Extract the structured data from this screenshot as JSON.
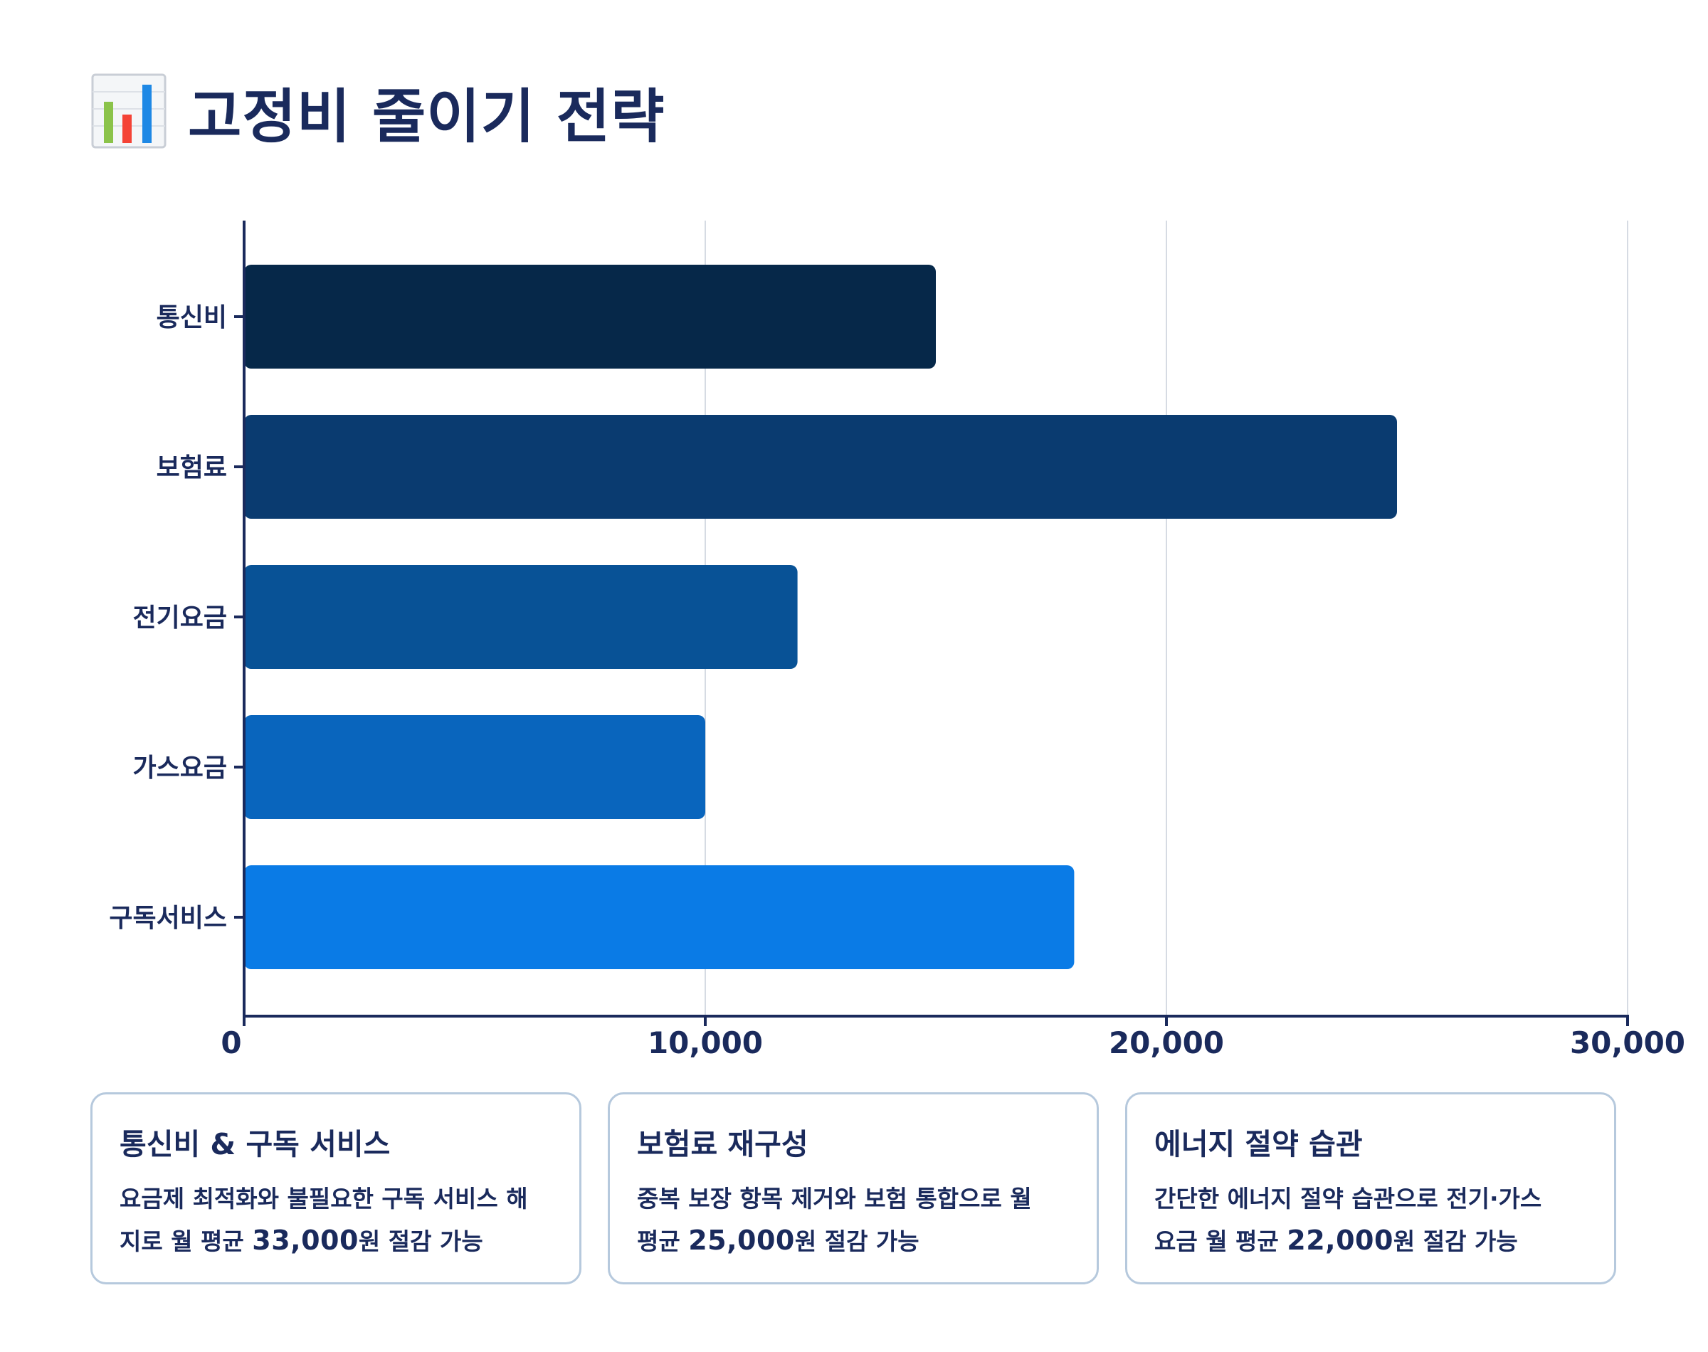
{
  "page": {
    "title": "고정비 줄이기 전략",
    "title_icon": "bar-chart-icon"
  },
  "colors": {
    "text": "#1a2a5c",
    "grid": "#d6dbe3",
    "axis": "#1a2a5c",
    "card_border": "#b6c9dd",
    "bars": [
      "#062849",
      "#0a3b70",
      "#085296",
      "#0965bd",
      "#0a7be6"
    ]
  },
  "chart_data": {
    "type": "bar",
    "orientation": "horizontal",
    "title": "",
    "categories": [
      "통신비",
      "보험료",
      "전기요금",
      "가스요금",
      "구독서비스"
    ],
    "values": [
      15000,
      25000,
      12000,
      10000,
      18000
    ],
    "xlim": [
      0,
      30000
    ],
    "xticks": [
      0,
      10000,
      20000,
      30000
    ],
    "xtick_labels": [
      "0",
      "10,000",
      "20,000",
      "30,000"
    ],
    "xlabel": "",
    "ylabel": "",
    "grid": "vertical",
    "legend": "none"
  },
  "cards": [
    {
      "title": "통신비 & 구독 서비스",
      "line1": "요금제 최적화와 불필요한 구독 서비스 해",
      "line2_prefix": "지로 월 평균 ",
      "amount": "33,000",
      "line2_suffix": "원 절감 가능"
    },
    {
      "title": "보험료 재구성",
      "line1": "중복 보장 항목 제거와 보험 통합으로 월",
      "line2_prefix": "평균 ",
      "amount": "25,000",
      "line2_suffix": "원 절감 가능"
    },
    {
      "title": "에너지 절약 습관",
      "line1": "간단한 에너지 절약 습관으로 전기·가스",
      "line2_prefix": "요금 월 평균 ",
      "amount": "22,000",
      "line2_suffix": "원 절감 가능"
    }
  ]
}
